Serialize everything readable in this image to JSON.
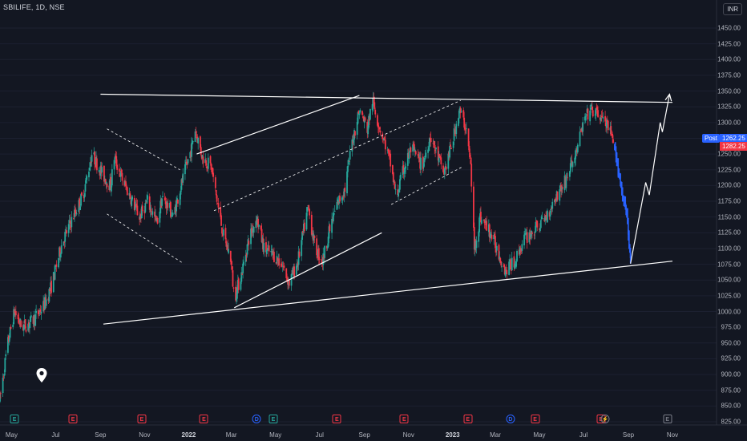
{
  "header": {
    "symbol": "SBILIFE, 1D, NSE"
  },
  "currency_badge": "INR",
  "price_labels": {
    "post_label": "Post",
    "post_price": "1262.25",
    "last_price": "1282.25"
  },
  "colors": {
    "background": "#131722",
    "up": "#26a69a",
    "down": "#f23645",
    "projection": "#2962ff",
    "drawing": "#ffffff"
  },
  "events": [
    {
      "x": "2021-05-05",
      "label": "E",
      "style": "ev-e-green"
    },
    {
      "x": "2021-07-25",
      "label": "E",
      "style": "ev-e-red"
    },
    {
      "x": "2021-10-28",
      "label": "E",
      "style": "ev-e-red"
    },
    {
      "x": "2022-01-22",
      "label": "E",
      "style": "ev-e-red"
    },
    {
      "x": "2022-04-05",
      "label": "D",
      "style": "ev-d"
    },
    {
      "x": "2022-04-28",
      "label": "E",
      "style": "ev-e-green"
    },
    {
      "x": "2022-07-25",
      "label": "E",
      "style": "ev-e-red"
    },
    {
      "x": "2022-10-26",
      "label": "E",
      "style": "ev-e-red"
    },
    {
      "x": "2023-01-22",
      "label": "E",
      "style": "ev-e-red"
    },
    {
      "x": "2023-03-22",
      "label": "D",
      "style": "ev-d"
    },
    {
      "x": "2023-04-25",
      "label": "E",
      "style": "ev-e-red"
    },
    {
      "x": "2023-07-25",
      "label": "E",
      "style": "ev-e-red"
    },
    {
      "x": "2023-07-31",
      "label": "⚡",
      "style": "ev-split"
    },
    {
      "x": "2023-10-25",
      "label": "E",
      "style": "ev-e-grey"
    }
  ],
  "chart_data": {
    "type": "candlestick",
    "ylim": [
      810,
      1470
    ],
    "y_ticks": [
      825,
      850,
      875,
      900,
      925,
      950,
      975,
      1000,
      1025,
      1050,
      1075,
      1100,
      1125,
      1150,
      1175,
      1200,
      1225,
      1250,
      1275,
      1300,
      1325,
      1350,
      1375,
      1400,
      1425,
      1450
    ],
    "x_ticks": [
      {
        "label": "May",
        "date": "2021-05-01",
        "bold": false
      },
      {
        "label": "Jul",
        "date": "2021-07-01",
        "bold": false
      },
      {
        "label": "Sep",
        "date": "2021-09-01",
        "bold": false
      },
      {
        "label": "Nov",
        "date": "2021-11-01",
        "bold": false
      },
      {
        "label": "2022",
        "date": "2022-01-01",
        "bold": true
      },
      {
        "label": "Mar",
        "date": "2022-03-01",
        "bold": false
      },
      {
        "label": "May",
        "date": "2022-05-01",
        "bold": false
      },
      {
        "label": "Jul",
        "date": "2022-07-01",
        "bold": false
      },
      {
        "label": "Sep",
        "date": "2022-09-01",
        "bold": false
      },
      {
        "label": "Nov",
        "date": "2022-11-01",
        "bold": false
      },
      {
        "label": "2023",
        "date": "2023-01-01",
        "bold": true
      },
      {
        "label": "Mar",
        "date": "2023-03-01",
        "bold": false
      },
      {
        "label": "May",
        "date": "2023-05-01",
        "bold": false
      },
      {
        "label": "Jul",
        "date": "2023-07-01",
        "bold": false
      },
      {
        "label": "Sep",
        "date": "2023-09-01",
        "bold": false
      },
      {
        "label": "Nov",
        "date": "2023-11-01",
        "bold": false
      }
    ],
    "price_path": [
      [
        "2021-04-15",
        860
      ],
      [
        "2021-04-25",
        945
      ],
      [
        "2021-05-05",
        1000
      ],
      [
        "2021-05-15",
        975
      ],
      [
        "2021-05-30",
        985
      ],
      [
        "2021-06-15",
        1010
      ],
      [
        "2021-06-25",
        1040
      ],
      [
        "2021-07-10",
        1110
      ],
      [
        "2021-07-25",
        1150
      ],
      [
        "2021-08-08",
        1185
      ],
      [
        "2021-08-20",
        1250
      ],
      [
        "2021-09-05",
        1215
      ],
      [
        "2021-09-15",
        1200
      ],
      [
        "2021-09-20",
        1245
      ],
      [
        "2021-10-01",
        1210
      ],
      [
        "2021-10-15",
        1175
      ],
      [
        "2021-10-25",
        1150
      ],
      [
        "2021-11-05",
        1175
      ],
      [
        "2021-11-18",
        1140
      ],
      [
        "2021-11-25",
        1180
      ],
      [
        "2021-12-05",
        1165
      ],
      [
        "2021-12-10",
        1150
      ],
      [
        "2021-12-25",
        1215
      ],
      [
        "2022-01-05",
        1260
      ],
      [
        "2022-01-10",
        1290
      ],
      [
        "2022-01-20",
        1245
      ],
      [
        "2022-02-01",
        1230
      ],
      [
        "2022-02-10",
        1170
      ],
      [
        "2022-02-18",
        1120
      ],
      [
        "2022-02-28",
        1085
      ],
      [
        "2022-03-05",
        1020
      ],
      [
        "2022-03-15",
        1060
      ],
      [
        "2022-03-25",
        1115
      ],
      [
        "2022-04-05",
        1150
      ],
      [
        "2022-04-15",
        1100
      ],
      [
        "2022-04-28",
        1090
      ],
      [
        "2022-05-10",
        1075
      ],
      [
        "2022-05-20",
        1045
      ],
      [
        "2022-06-01",
        1080
      ],
      [
        "2022-06-15",
        1165
      ],
      [
        "2022-06-25",
        1100
      ],
      [
        "2022-07-05",
        1080
      ],
      [
        "2022-07-15",
        1130
      ],
      [
        "2022-07-25",
        1170
      ],
      [
        "2022-08-05",
        1195
      ],
      [
        "2022-08-15",
        1270
      ],
      [
        "2022-08-25",
        1320
      ],
      [
        "2022-09-05",
        1290
      ],
      [
        "2022-09-12",
        1335
      ],
      [
        "2022-09-20",
        1300
      ],
      [
        "2022-09-30",
        1265
      ],
      [
        "2022-10-08",
        1230
      ],
      [
        "2022-10-15",
        1180
      ],
      [
        "2022-10-25",
        1225
      ],
      [
        "2022-11-05",
        1260
      ],
      [
        "2022-11-20",
        1230
      ],
      [
        "2022-12-01",
        1280
      ],
      [
        "2022-12-10",
        1250
      ],
      [
        "2022-12-20",
        1220
      ],
      [
        "2023-01-01",
        1270
      ],
      [
        "2023-01-10",
        1320
      ],
      [
        "2023-01-20",
        1290
      ],
      [
        "2023-01-26",
        1230
      ],
      [
        "2023-01-31",
        1100
      ],
      [
        "2023-02-08",
        1150
      ],
      [
        "2023-02-20",
        1130
      ],
      [
        "2023-03-05",
        1095
      ],
      [
        "2023-03-15",
        1065
      ],
      [
        "2023-03-28",
        1080
      ],
      [
        "2023-04-10",
        1115
      ],
      [
        "2023-04-25",
        1130
      ],
      [
        "2023-05-10",
        1150
      ],
      [
        "2023-05-25",
        1185
      ],
      [
        "2023-06-05",
        1205
      ],
      [
        "2023-06-20",
        1250
      ],
      [
        "2023-07-01",
        1300
      ],
      [
        "2023-07-10",
        1320
      ],
      [
        "2023-07-25",
        1310
      ],
      [
        "2023-08-05",
        1290
      ],
      [
        "2023-08-12",
        1262
      ]
    ],
    "projection": [
      [
        "2023-08-13",
        1262
      ],
      [
        "2023-08-15",
        1245
      ],
      [
        "2023-08-18",
        1225
      ],
      [
        "2023-08-22",
        1200
      ],
      [
        "2023-08-26",
        1175
      ],
      [
        "2023-08-30",
        1155
      ],
      [
        "2023-09-02",
        1110
      ],
      [
        "2023-09-04",
        1080
      ]
    ],
    "drawings": [
      {
        "name": "top-resistance-line",
        "style": "solid",
        "points": [
          [
            "2021-09-01",
            1345
          ],
          [
            "2023-11-01",
            1332
          ]
        ]
      },
      {
        "name": "bottom-support-line",
        "style": "solid",
        "points": [
          [
            "2021-09-05",
            980
          ],
          [
            "2023-11-01",
            1080
          ]
        ]
      },
      {
        "name": "inner-up-line",
        "style": "solid",
        "points": [
          [
            "2022-03-05",
            1006
          ],
          [
            "2022-09-25",
            1125
          ]
        ]
      },
      {
        "name": "upper-up-line",
        "style": "solid",
        "points": [
          [
            "2022-01-12",
            1250
          ],
          [
            "2022-08-25",
            1343
          ]
        ]
      },
      {
        "name": "flag1-upper",
        "style": "dashed",
        "points": [
          [
            "2021-09-10",
            1290
          ],
          [
            "2021-12-20",
            1225
          ]
        ]
      },
      {
        "name": "flag1-lower",
        "style": "dashed",
        "points": [
          [
            "2021-09-10",
            1155
          ],
          [
            "2021-12-25",
            1076
          ]
        ]
      },
      {
        "name": "channel-upper",
        "style": "dashed",
        "points": [
          [
            "2022-02-05",
            1160
          ],
          [
            "2023-01-12",
            1335
          ]
        ]
      },
      {
        "name": "channel-lower",
        "style": "dashed",
        "points": [
          [
            "2022-10-08",
            1170
          ],
          [
            "2023-01-15",
            1230
          ]
        ]
      },
      {
        "name": "target-arrow",
        "style": "arrow",
        "points": [
          [
            "2023-09-04",
            1076
          ],
          [
            "2023-09-25",
            1205
          ],
          [
            "2023-09-30",
            1185
          ],
          [
            "2023-10-15",
            1300
          ],
          [
            "2023-10-18",
            1285
          ],
          [
            "2023-10-28",
            1345
          ]
        ]
      }
    ]
  }
}
